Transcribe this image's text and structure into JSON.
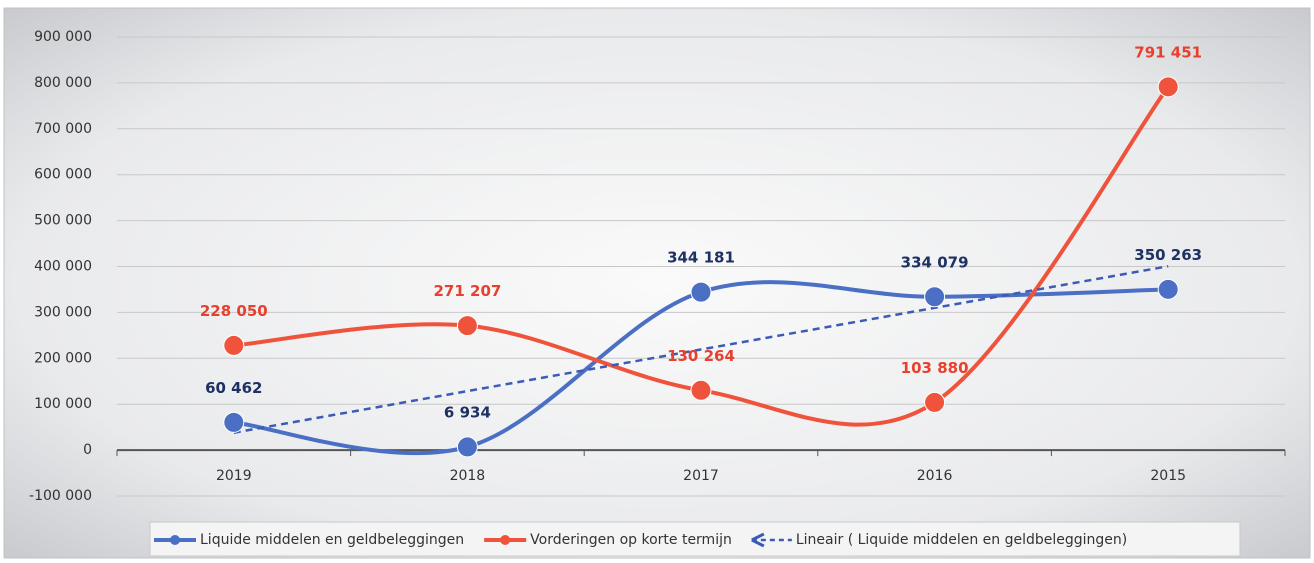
{
  "chart_data": {
    "type": "line",
    "categories": [
      "2019",
      "2018",
      "2017",
      "2016",
      "2015"
    ],
    "series": [
      {
        "name": "Liquide middelen en geldbeleggingen",
        "color": "#4a6fc4",
        "label_color": "#1f3163",
        "values": [
          60462,
          6934,
          344181,
          334079,
          350263
        ],
        "value_labels": [
          "60 462",
          "6 934",
          "344 181",
          "334 079",
          "350 263"
        ]
      },
      {
        "name": "Vorderingen op korte termijn",
        "color": "#f0533b",
        "label_color": "#e8402e",
        "values": [
          228050,
          271207,
          130264,
          103880,
          791451
        ],
        "value_labels": [
          "228 050",
          "271 207",
          "130 264",
          "103 880",
          "791 451"
        ]
      }
    ],
    "trendline": {
      "name": "Lineair ( Liquide middelen en geldbeleggingen)",
      "series": 0,
      "color": "#3b5bb5",
      "dashed": true
    },
    "ylim": [
      -100000,
      900000
    ],
    "yticks": [
      {
        "value": -100000,
        "label": "-100 000"
      },
      0,
      {
        "value": 100000,
        "label": "100 000"
      },
      {
        "value": 200000,
        "label": "200 000"
      },
      {
        "value": 300000,
        "label": "300 000"
      },
      {
        "value": 400000,
        "label": "400 000"
      },
      {
        "value": 500000,
        "label": "500 000"
      },
      {
        "value": 600000,
        "label": "600 000"
      },
      {
        "value": 700000,
        "label": "700 000"
      },
      {
        "value": 800000,
        "label": "800 000"
      },
      {
        "value": 900000,
        "label": "900 000"
      }
    ],
    "grid": true,
    "smooth": true,
    "legend": "bottom"
  }
}
